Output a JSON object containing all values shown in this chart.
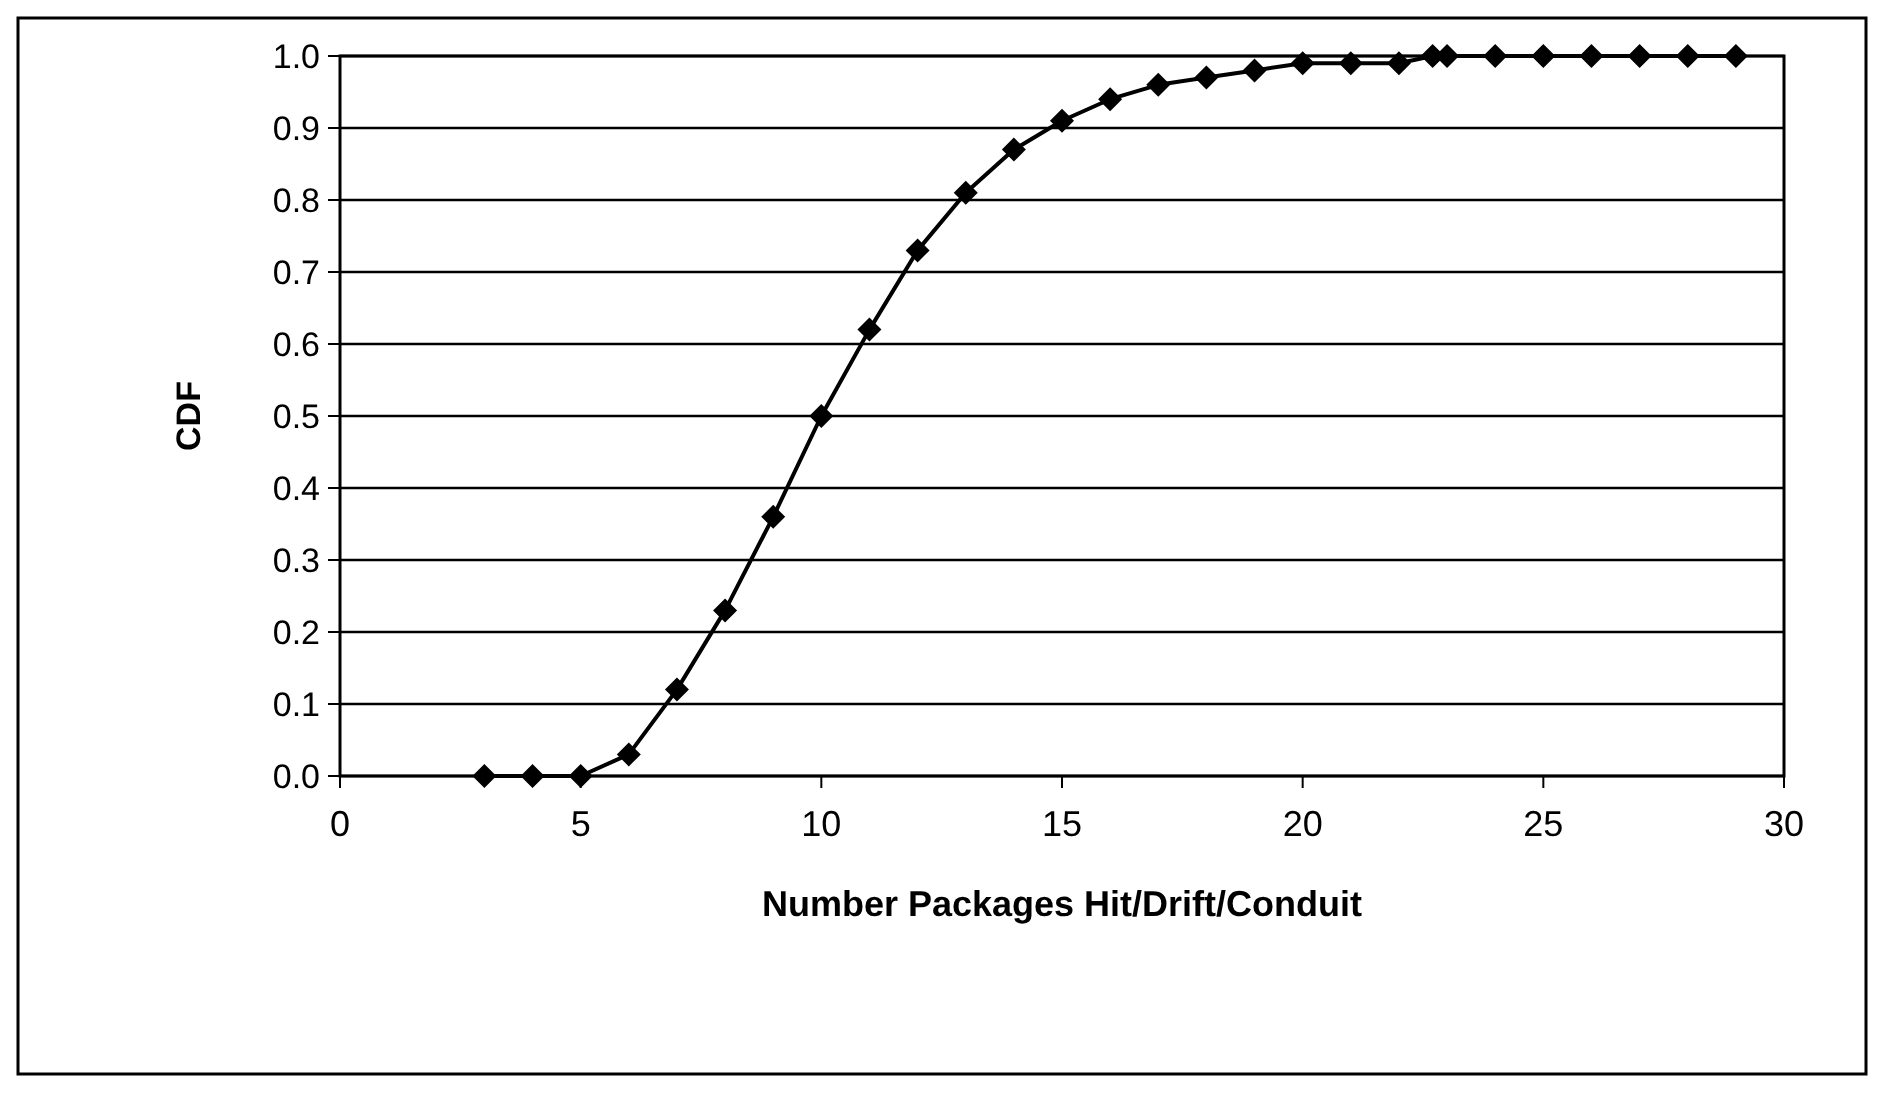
{
  "chart_data": {
    "type": "line",
    "xlabel": "Number Packages Hit/Drift/Conduit",
    "ylabel": "CDF",
    "x": [
      3,
      4,
      5,
      6,
      7,
      8,
      9,
      10,
      11,
      12,
      13,
      14,
      15,
      16,
      17,
      18,
      19,
      20,
      21,
      22,
      22.7,
      23,
      24,
      25,
      26,
      27,
      28,
      29
    ],
    "series": [
      {
        "color": "#000000",
        "values": [
          0,
          0,
          0,
          0.03,
          0.12,
          0.23,
          0.36,
          0.5,
          0.62,
          0.73,
          0.81,
          0.87,
          0.91,
          0.94,
          0.96,
          0.97,
          0.98,
          0.99,
          0.99,
          0.99,
          1.0,
          1.0,
          1.0,
          1.0,
          1.0,
          1.0,
          1.0,
          1.0
        ]
      }
    ],
    "xlim": [
      0,
      30
    ],
    "xticks": [
      0,
      5,
      10,
      15,
      20,
      25,
      30
    ],
    "ylim": [
      0,
      1
    ],
    "yticks": [
      {
        "value": 0,
        "label": "0.0"
      },
      {
        "value": 0.1,
        "label": "0.1"
      },
      {
        "value": 0.2,
        "label": "0.2"
      },
      {
        "value": 0.3,
        "label": "0.3"
      },
      {
        "value": 0.4,
        "label": "0.4"
      },
      {
        "value": 0.5,
        "label": "0.5"
      },
      {
        "value": 0.6,
        "label": "0.6"
      },
      {
        "value": 0.7,
        "label": "0.7"
      },
      {
        "value": 0.8,
        "label": "0.8"
      },
      {
        "value": 0.9,
        "label": "0.9"
      },
      {
        "value": 1,
        "label": "1.0"
      }
    ],
    "grid": "y",
    "marker": "diamond",
    "line_style": "solid"
  }
}
